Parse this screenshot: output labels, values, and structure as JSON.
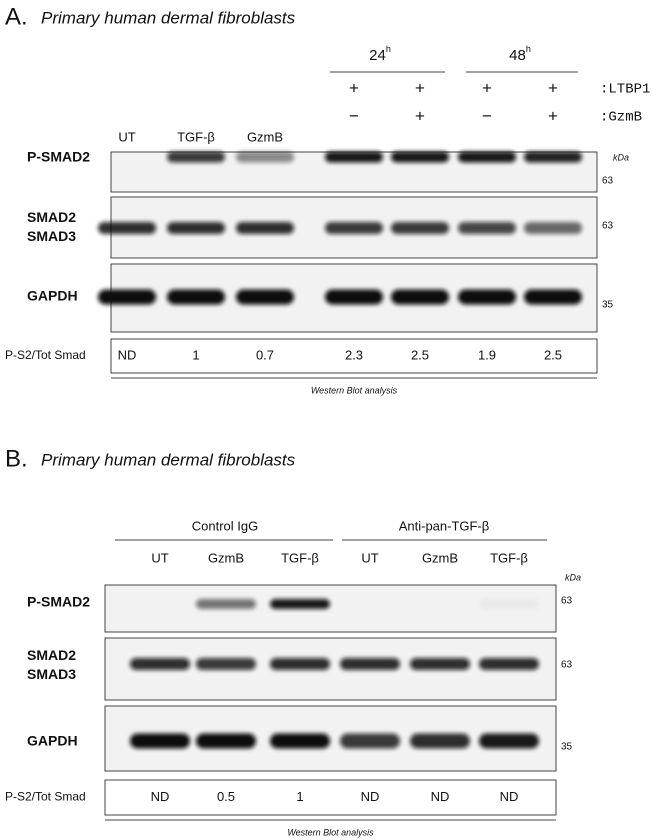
{
  "panel_a": {
    "label": "A.",
    "title": "Primary human dermal fibroblasts",
    "time_groups": [
      {
        "value": "24",
        "sup": "h"
      },
      {
        "value": "48",
        "sup": "h"
      }
    ],
    "treatment_rows": [
      {
        "name": ":LTBP1",
        "signs": [
          "+",
          "+",
          "+",
          "+"
        ]
      },
      {
        "name": ":GzmB",
        "signs": [
          "−",
          "+",
          "−",
          "+"
        ]
      }
    ],
    "lanes": [
      "UT",
      "TGF-β",
      "GzmB"
    ],
    "kda": "kDa",
    "blots": [
      {
        "labels": [
          "P-SMAD2"
        ],
        "marker": "63"
      },
      {
        "labels": [
          "SMAD2",
          "SMAD3"
        ],
        "marker": "63"
      },
      {
        "labels": [
          "GAPDH"
        ],
        "marker": "35"
      }
    ],
    "quant_label": "P-S2/Tot Smad",
    "quant_values": [
      "ND",
      "1",
      "0.7",
      "2.3",
      "2.5",
      "1.9",
      "2.5"
    ],
    "footer": "Western Blot analysis"
  },
  "panel_b": {
    "label": "B.",
    "title": "Primary human dermal fibroblasts",
    "groups": [
      "Control IgG",
      "Anti-pan-TGF-β"
    ],
    "lanes": [
      "UT",
      "GzmB",
      "TGF-β",
      "UT",
      "GzmB",
      "TGF-β"
    ],
    "kda": "kDa",
    "blots": [
      {
        "labels": [
          "P-SMAD2"
        ],
        "marker": "63"
      },
      {
        "labels": [
          "SMAD2",
          "SMAD3"
        ],
        "marker": "63"
      },
      {
        "labels": [
          "GAPDH"
        ],
        "marker": "35"
      }
    ],
    "quant_label": "P-S2/Tot Smad",
    "quant_values": [
      "ND",
      "0.5",
      "1",
      "ND",
      "ND",
      "ND"
    ],
    "footer": "Western Blot analysis"
  }
}
